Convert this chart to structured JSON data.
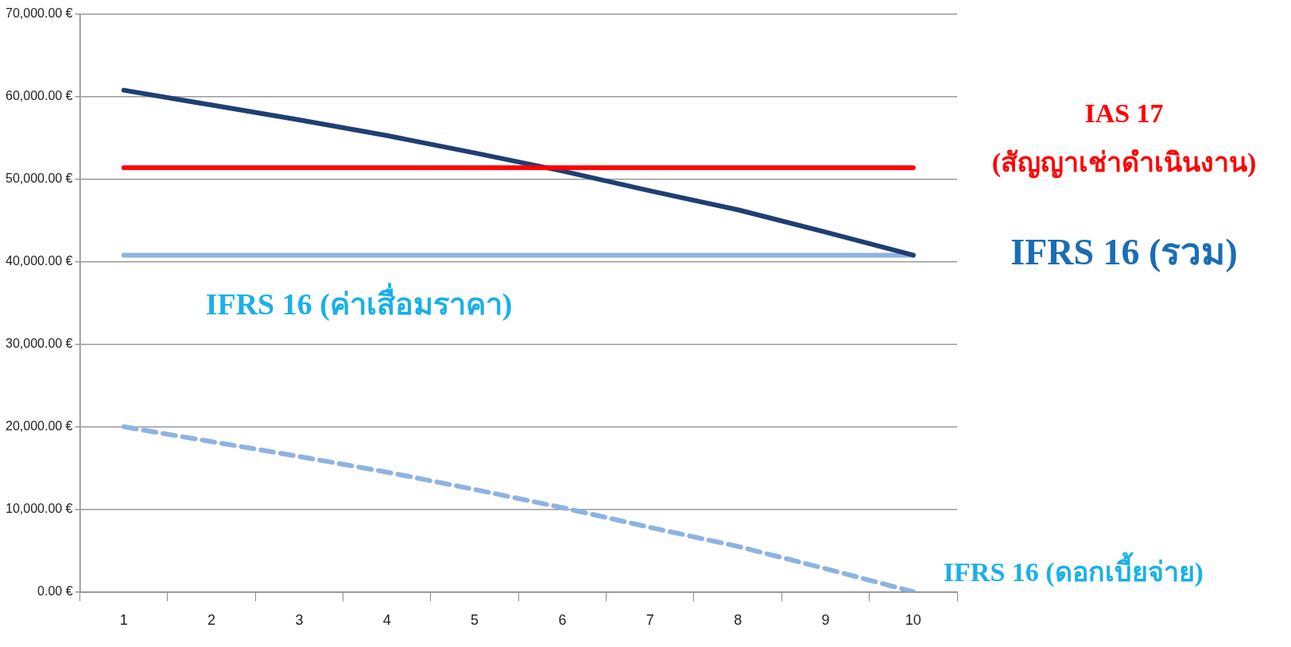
{
  "chart_data": {
    "type": "line",
    "categories": [
      "1",
      "2",
      "3",
      "4",
      "5",
      "6",
      "7",
      "8",
      "9",
      "10"
    ],
    "series": [
      {
        "name": "IAS 17 (สัญญาเช่าดำเนินงาน)",
        "color": "#ff0000",
        "values": [
          51400,
          51400,
          51400,
          51400,
          51400,
          51400,
          51400,
          51400,
          51400,
          51400
        ]
      },
      {
        "name": "IFRS 16 (รวม)",
        "color": "#1f3f73",
        "values": [
          60800,
          59000,
          57200,
          55300,
          53200,
          51000,
          48600,
          46300,
          43600,
          40800
        ]
      },
      {
        "name": "IFRS 16 (ค่าเสื่อมราคา)",
        "color": "#8db3e2",
        "values": [
          40800,
          40800,
          40800,
          40800,
          40800,
          40800,
          40800,
          40800,
          40800,
          40800
        ]
      },
      {
        "name": "IFRS 16 (ดอกเบี้ยจ่าย)",
        "color": "#8db3e2",
        "line_style": "dashed",
        "values": [
          20000,
          18200,
          16400,
          14500,
          12400,
          10200,
          7800,
          5500,
          2800,
          0
        ]
      }
    ],
    "ylim": [
      0,
      70000
    ],
    "yticks": [
      {
        "value": 0,
        "label": "0.00 €"
      },
      {
        "value": 10000,
        "label": "10,000.00 €"
      },
      {
        "value": 20000,
        "label": "20,000.00 €"
      },
      {
        "value": 30000,
        "label": "30,000.00 €"
      },
      {
        "value": 40000,
        "label": "40,000.00 €"
      },
      {
        "value": 50000,
        "label": "50,000.00 €"
      },
      {
        "value": 60000,
        "label": "60,000.00 €"
      },
      {
        "value": 70000,
        "label": "70,000.00 €"
      }
    ],
    "grid": "y",
    "legend": false,
    "marker": "none"
  }
}
